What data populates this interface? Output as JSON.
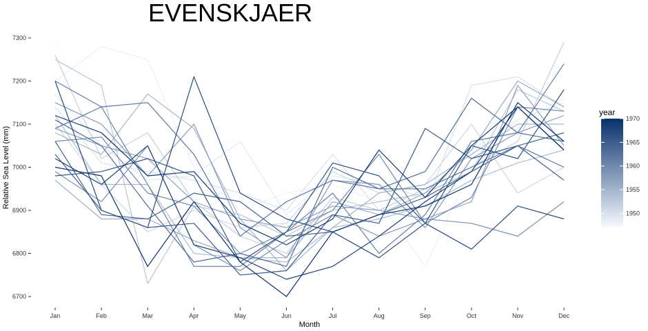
{
  "chart_data": {
    "type": "line",
    "title": "EVENSKJAER",
    "xlabel": "Month",
    "ylabel": "Relative Sea Level (mm)",
    "categories": [
      "Jan",
      "Feb",
      "Mar",
      "Apr",
      "May",
      "Jun",
      "Jul",
      "Aug",
      "Sep",
      "Oct",
      "Nov",
      "Dec"
    ],
    "ylim": [
      6690,
      7300
    ],
    "yticks": [
      6700,
      6800,
      6900,
      7000,
      7100,
      7200,
      7300
    ],
    "grid": false,
    "legend": {
      "title": "year",
      "position": "right",
      "range": [
        1947,
        1970
      ],
      "ticks": [
        1950,
        1955,
        1960,
        1965,
        1970
      ],
      "color_low": "#f7fbff",
      "color_high": "#08306b"
    },
    "series": [
      {
        "year": 1947,
        "values": [
          7290,
          7090,
          7000,
          6960,
          6920,
          6870,
          6900,
          6960,
          6990,
          7060,
          7080,
          7050
        ]
      },
      {
        "year": 1948,
        "values": [
          7200,
          7280,
          7250,
          7000,
          6900,
          6940,
          6960,
          6920,
          6770,
          7000,
          7090,
          7160
        ]
      },
      {
        "year": 1949,
        "values": [
          7170,
          7050,
          6970,
          6980,
          7060,
          6890,
          6980,
          6960,
          6930,
          7040,
          7110,
          7150
        ]
      },
      {
        "year": 1950,
        "values": [
          7140,
          7010,
          6990,
          6970,
          6940,
          6900,
          7030,
          6900,
          6910,
          7190,
          7210,
          7140
        ]
      },
      {
        "year": 1951,
        "values": [
          7100,
          6960,
          6850,
          6900,
          6860,
          6870,
          6990,
          6940,
          6960,
          7100,
          6940,
          7000
        ]
      },
      {
        "year": 1952,
        "values": [
          7260,
          7020,
          7080,
          6920,
          6840,
          6800,
          6930,
          6900,
          6950,
          7000,
          7060,
          7290
        ]
      },
      {
        "year": 1953,
        "values": [
          7250,
          7190,
          6730,
          6910,
          6890,
          6840,
          6900,
          6920,
          6940,
          6990,
          7180,
          7130
        ]
      },
      {
        "year": 1954,
        "values": [
          7120,
          6960,
          6960,
          6800,
          6790,
          6780,
          6860,
          6880,
          6910,
          6970,
          7010,
          7040
        ]
      },
      {
        "year": 1955,
        "values": [
          7080,
          7030,
          7170,
          7090,
          6880,
          6760,
          6860,
          6940,
          6960,
          7030,
          7100,
          7100
        ]
      },
      {
        "year": 1956,
        "values": [
          6970,
          6880,
          6880,
          6830,
          6790,
          6790,
          6920,
          6890,
          6940,
          7040,
          7200,
          7140
        ]
      },
      {
        "year": 1957,
        "values": [
          7090,
          7050,
          7020,
          6920,
          6880,
          6860,
          6910,
          6900,
          6880,
          6920,
          7190,
          7050
        ]
      },
      {
        "year": 1958,
        "values": [
          7150,
          7100,
          6980,
          7100,
          6860,
          6790,
          6970,
          6960,
          6860,
          7020,
          7080,
          7120
        ]
      },
      {
        "year": 1959,
        "values": [
          6990,
          6920,
          7050,
          6820,
          6760,
          6830,
          6890,
          6840,
          6880,
          6870,
          6840,
          6920
        ]
      },
      {
        "year": 1960,
        "values": [
          7060,
          7070,
          6940,
          6910,
          6800,
          6850,
          6900,
          7030,
          6870,
          6930,
          7140,
          7130
        ]
      },
      {
        "year": 1961,
        "values": [
          7200,
          7140,
          6960,
          6770,
          6770,
          6850,
          6940,
          6800,
          6890,
          7060,
          7080,
          7240
        ]
      },
      {
        "year": 1962,
        "values": [
          7090,
          7140,
          7150,
          7030,
          6840,
          6920,
          6970,
          6950,
          6950,
          7000,
          7050,
          7000
        ]
      },
      {
        "year": 1963,
        "values": [
          7110,
          7050,
          6910,
          6780,
          6800,
          6770,
          7000,
          6950,
          6990,
          7160,
          7080,
          7060
        ]
      },
      {
        "year": 1964,
        "values": [
          7060,
          6890,
          6880,
          6940,
          6920,
          6840,
          6850,
          6890,
          6930,
          6990,
          7050,
          7080
        ]
      },
      {
        "year": 1965,
        "values": [
          7030,
          6900,
          6860,
          6870,
          6750,
          6760,
          6890,
          6870,
          7090,
          7020,
          7050,
          6970
        ]
      },
      {
        "year": 1966,
        "values": [
          6980,
          6990,
          7020,
          6980,
          6780,
          6850,
          7010,
          6980,
          6870,
          7050,
          7020,
          7180
        ]
      },
      {
        "year": 1967,
        "values": [
          7200,
          6900,
          6860,
          7210,
          6940,
          6880,
          6850,
          6790,
          6870,
          6810,
          6910,
          6880
        ]
      },
      {
        "year": 1968,
        "values": [
          7020,
          6960,
          7050,
          6820,
          6790,
          6740,
          6770,
          6840,
          6920,
          6990,
          7140,
          7040
        ]
      },
      {
        "year": 1969,
        "values": [
          7120,
          7080,
          6980,
          6990,
          6870,
          6820,
          6880,
          7040,
          6930,
          7050,
          7140,
          7040
        ]
      },
      {
        "year": 1970,
        "values": [
          7000,
          6980,
          6770,
          6920,
          6780,
          6700,
          6850,
          6890,
          6910,
          6960,
          7150,
          7060
        ]
      }
    ]
  }
}
